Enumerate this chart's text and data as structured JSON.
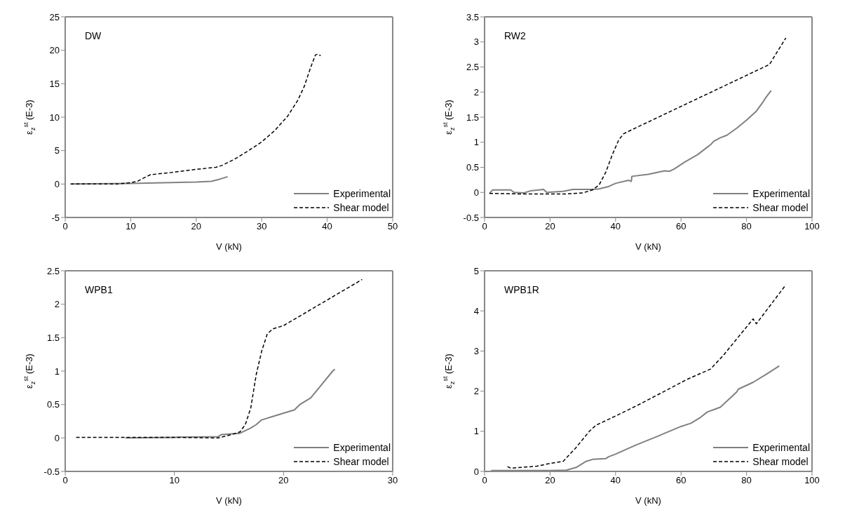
{
  "chart_data": [
    {
      "type": "line",
      "xlabel": "V (kN)",
      "ylabel": "ε$_{z}$$^{st}$ (E-3)",
      "annotations": [
        "DW"
      ],
      "xlim": [
        0,
        50
      ],
      "xticks": [
        0,
        10,
        20,
        30,
        40,
        50
      ],
      "ylim": [
        -5,
        25
      ],
      "yticks": [
        -5,
        0,
        5,
        10,
        15,
        20,
        25
      ],
      "legend": "bottom right",
      "marker": "none",
      "series": [
        {
          "name": "Experimental",
          "color": "#808080",
          "line_style": "solid",
          "x": [
            1,
            10,
            15,
            20,
            22.3,
            23.5,
            24.8
          ],
          "values": [
            0,
            0.1,
            0.2,
            0.3,
            0.4,
            0.7,
            1.1
          ]
        },
        {
          "name": "Shear model",
          "color": "#000000",
          "line_style": "dashed",
          "x": [
            0.8,
            5,
            8,
            10,
            11,
            13,
            16,
            20,
            23,
            24,
            26,
            28,
            30,
            32,
            34,
            35.5,
            36.5,
            37.5,
            38.2,
            38.5,
            39
          ],
          "values": [
            0,
            0,
            0,
            0.2,
            0.4,
            1.4,
            1.7,
            2.2,
            2.5,
            2.8,
            3.8,
            5,
            6.3,
            8,
            10.2,
            12.5,
            14.6,
            17.5,
            19.3,
            19.4,
            19.2
          ]
        }
      ]
    },
    {
      "type": "line",
      "xlabel": "V (kN)",
      "ylabel": "ε$_{z}$$^{st}$ (E-3)",
      "annotations": [
        "RW2"
      ],
      "xlim": [
        0,
        100
      ],
      "xticks": [
        0,
        20,
        40,
        60,
        80,
        100
      ],
      "ylim": [
        -0.5,
        3.5
      ],
      "yticks": [
        -0.5,
        0,
        0.5,
        1,
        1.5,
        2,
        2.5,
        3,
        3.5
      ],
      "legend": "bottom right",
      "marker": "none",
      "series": [
        {
          "name": "Experimental",
          "color": "#808080",
          "line_style": "solid",
          "x": [
            1.5,
            2.5,
            7,
            8,
            9,
            12,
            14,
            18,
            19,
            24,
            27,
            30,
            33,
            35,
            38,
            40,
            44,
            44.8,
            45,
            50,
            55,
            56.5,
            58,
            61,
            65,
            68,
            69,
            70,
            72,
            74,
            77,
            80,
            83,
            85,
            86,
            87.5
          ],
          "values": [
            -0.02,
            0.05,
            0.05,
            0.05,
            0,
            -0.01,
            0.03,
            0.06,
            0,
            0.02,
            0.06,
            0.06,
            0.06,
            0.07,
            0.12,
            0.18,
            0.24,
            0.22,
            0.32,
            0.36,
            0.43,
            0.42,
            0.47,
            0.6,
            0.75,
            0.9,
            0.95,
            1.02,
            1.09,
            1.14,
            1.28,
            1.44,
            1.62,
            1.8,
            1.9,
            2.03
          ]
        },
        {
          "name": "Shear model",
          "color": "#000000",
          "line_style": "dashed",
          "x": [
            1.5,
            10,
            25,
            30,
            33,
            35,
            37,
            39,
            41,
            42.5,
            45,
            87,
            92
          ],
          "values": [
            -0.02,
            -0.03,
            -0.03,
            -0.01,
            0.05,
            0.15,
            0.4,
            0.75,
            1.05,
            1.17,
            1.25,
            2.55,
            3.08
          ]
        }
      ]
    },
    {
      "type": "line",
      "xlabel": "V (kN)",
      "ylabel": "ε$_{z}$$^{st}$ (E-3)",
      "annotations": [
        "WPB1"
      ],
      "xlim": [
        0,
        30
      ],
      "xticks": [
        0,
        10,
        20,
        30
      ],
      "ylim": [
        -0.5,
        2.5
      ],
      "yticks": [
        -0.5,
        0,
        0.5,
        1,
        1.5,
        2,
        2.5
      ],
      "legend": "bottom right",
      "marker": "none",
      "series": [
        {
          "name": "Experimental",
          "color": "#808080",
          "line_style": "solid",
          "x": [
            5.5,
            10,
            14,
            14.3,
            16,
            17,
            17.5,
            18,
            19,
            20,
            21,
            21.5,
            22.5,
            23.5,
            24.5,
            24.7
          ],
          "values": [
            0,
            0.01,
            0.02,
            0.05,
            0.07,
            0.15,
            0.2,
            0.27,
            0.32,
            0.37,
            0.42,
            0.5,
            0.6,
            0.8,
            1.0,
            1.03
          ]
        },
        {
          "name": "Shear model",
          "color": "#000000",
          "line_style": "dashed",
          "x": [
            1,
            10,
            14,
            15,
            16,
            16.5,
            17,
            17.5,
            18,
            18.5,
            19,
            20,
            27.2
          ],
          "values": [
            0.01,
            0.01,
            0,
            0.04,
            0.09,
            0.2,
            0.45,
            0.95,
            1.3,
            1.55,
            1.63,
            1.68,
            2.37
          ]
        }
      ]
    },
    {
      "type": "line",
      "xlabel": "V (kN)",
      "ylabel": "ε$_{z}$$^{st}$ (E-3)",
      "annotations": [
        "WPB1R"
      ],
      "xlim": [
        0,
        100
      ],
      "xticks": [
        0,
        20,
        40,
        60,
        80,
        100
      ],
      "ylim": [
        0,
        5
      ],
      "yticks": [
        0,
        1,
        2,
        3,
        4,
        5
      ],
      "legend": "bottom right",
      "marker": "none",
      "series": [
        {
          "name": "Experimental",
          "color": "#808080",
          "line_style": "solid",
          "x": [
            2,
            20,
            25,
            28,
            31,
            33,
            37,
            38,
            40,
            46,
            53,
            55,
            60,
            63,
            66,
            68,
            72,
            77,
            77.5,
            82,
            86,
            90
          ],
          "values": [
            0.02,
            0.02,
            0.03,
            0.1,
            0.25,
            0.3,
            0.32,
            0.37,
            0.43,
            0.65,
            0.88,
            0.95,
            1.12,
            1.2,
            1.35,
            1.48,
            1.6,
            1.98,
            2.05,
            2.22,
            2.42,
            2.63
          ]
        },
        {
          "name": "Shear model",
          "color": "#000000",
          "line_style": "dashed",
          "x": [
            7,
            8,
            16,
            20,
            24,
            28,
            32,
            34,
            40,
            47,
            55,
            62,
            69,
            73,
            78,
            82,
            83,
            92
          ],
          "values": [
            0.12,
            0.08,
            0.13,
            0.2,
            0.25,
            0.6,
            1.0,
            1.15,
            1.38,
            1.66,
            2.0,
            2.3,
            2.55,
            2.9,
            3.4,
            3.8,
            3.68,
            4.65
          ]
        }
      ]
    }
  ]
}
